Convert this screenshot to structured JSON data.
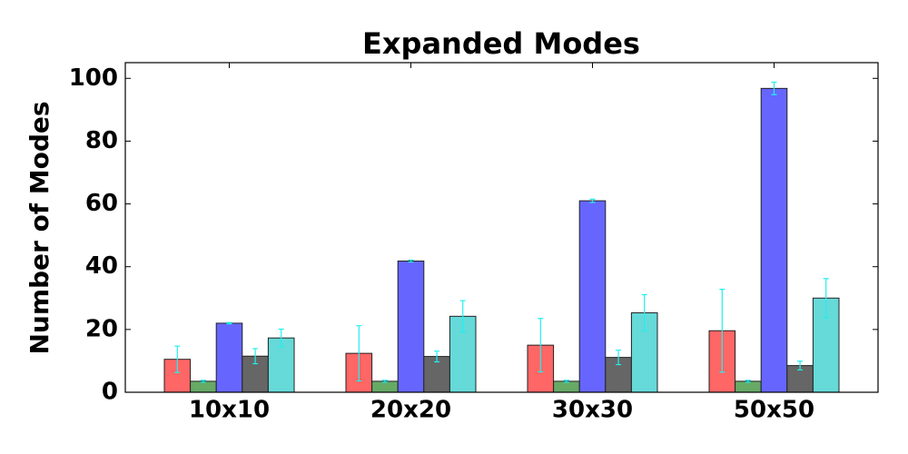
{
  "chart_data": {
    "type": "bar",
    "title": "Expanded Modes",
    "y_label": "Number of Modes",
    "categories": [
      "10x10",
      "20x20",
      "30x30",
      "50x50"
    ],
    "series": [
      {
        "color": "#ff6666",
        "values": [
          10.5,
          12.4,
          15,
          19.6
        ],
        "errors": [
          4.2,
          8.8,
          8.5,
          13.2
        ]
      },
      {
        "color": "#66aa66",
        "values": [
          3.5,
          3.5,
          3.5,
          3.5
        ],
        "errors": [
          0.3,
          0.3,
          0.3,
          0.3
        ]
      },
      {
        "color": "#6666ff",
        "values": [
          22,
          41.8,
          61,
          96.8
        ],
        "errors": [
          0.2,
          0.3,
          0.5,
          2
        ]
      },
      {
        "color": "#666666",
        "values": [
          11.5,
          11.4,
          11.1,
          8.5
        ],
        "errors": [
          2.4,
          1.7,
          2.3,
          1.4
        ]
      },
      {
        "color": "#66d9d9",
        "values": [
          17.3,
          24.2,
          25.3,
          30
        ],
        "errors": [
          2.8,
          5,
          5.8,
          6.2
        ]
      }
    ],
    "error_color": "#22eeee",
    "ylim": [
      0,
      105
    ],
    "yticks": [
      0,
      20,
      40,
      60,
      80,
      100
    ]
  }
}
